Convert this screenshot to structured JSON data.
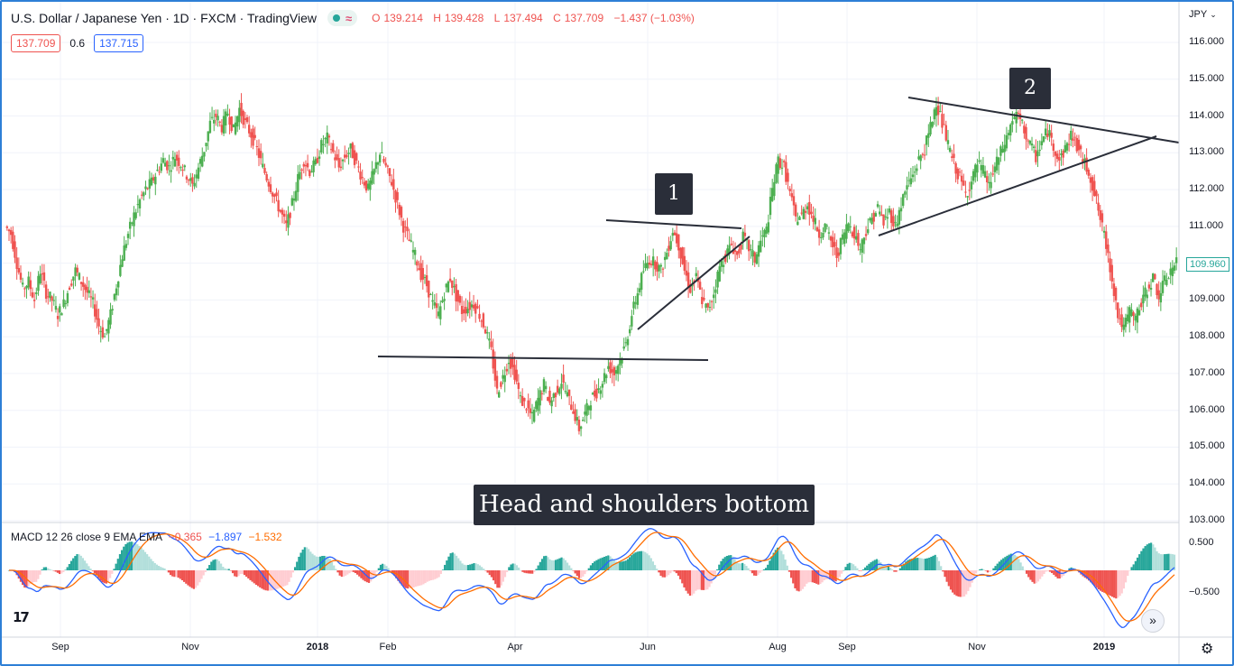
{
  "header": {
    "title": "U.S. Dollar / Japanese Yen · 1D · FXCM · TradingView",
    "ohlc": {
      "o_label": "O",
      "o": "139.214",
      "h_label": "H",
      "h": "139.428",
      "l_label": "L",
      "l": "137.494",
      "c_label": "C",
      "c": "137.709",
      "change": "−1.437 (−1.03%)"
    },
    "bid": "137.709",
    "spread": "0.6",
    "ask": "137.715"
  },
  "axis": {
    "currency": "JPY",
    "price_ticks": [
      "116.000",
      "115.000",
      "114.000",
      "113.000",
      "112.000",
      "111.000",
      "110.000",
      "109.000",
      "108.000",
      "107.000",
      "106.000",
      "105.000",
      "104.000",
      "103.000"
    ],
    "last_price": "109.960",
    "macd_ticks": [
      "0.500",
      "−0.500"
    ],
    "time_ticks": [
      {
        "label": "Sep",
        "bold": false
      },
      {
        "label": "Nov",
        "bold": false
      },
      {
        "label": "2018",
        "bold": true
      },
      {
        "label": "Feb",
        "bold": false
      },
      {
        "label": "Apr",
        "bold": false
      },
      {
        "label": "Jun",
        "bold": false
      },
      {
        "label": "Aug",
        "bold": false
      },
      {
        "label": "Sep",
        "bold": false
      },
      {
        "label": "Nov",
        "bold": false
      },
      {
        "label": "2019",
        "bold": true
      }
    ]
  },
  "annotations": {
    "label1": "1",
    "label2": "2",
    "caption": "Head and shoulders bottom"
  },
  "macd_legend": {
    "name": "MACD 12 26 close 9 EMA EMA",
    "hist": "−0.365",
    "macd": "−1.897",
    "signal": "−1.532"
  },
  "colors": {
    "up": "#26a69a",
    "up_bar": "#4caf50",
    "down": "#ef5350",
    "macd": "#2962ff",
    "signal": "#ff6d00",
    "frame": "#2d7fd6"
  },
  "icons": {
    "logo": "tradingview-logo-icon",
    "scroll": "scroll-to-realtime-icon",
    "settings": "gear-icon"
  },
  "chart_data": {
    "type": "candlestick",
    "symbol": "USDJPY",
    "interval": "1D",
    "x_range": [
      "2017-08",
      "2019-02"
    ],
    "ylim": [
      103,
      116.5
    ],
    "close": [
      110.8,
      110.0,
      109.3,
      109.5,
      109.0,
      109.8,
      109.2,
      109.0,
      108.6,
      108.9,
      109.4,
      109.8,
      109.5,
      109.2,
      108.9,
      108.3,
      108.0,
      108.6,
      109.4,
      110.2,
      110.8,
      111.3,
      111.7,
      112.0,
      112.2,
      112.5,
      112.8,
      112.6,
      112.9,
      112.7,
      112.4,
      112.1,
      112.6,
      113.1,
      113.8,
      114.0,
      113.7,
      114.1,
      113.6,
      114.2,
      113.8,
      113.5,
      113.1,
      112.6,
      112.2,
      111.8,
      111.4,
      111.0,
      111.6,
      112.3,
      112.8,
      112.5,
      112.7,
      113.2,
      113.4,
      113.0,
      112.6,
      112.9,
      113.1,
      112.7,
      112.3,
      112.0,
      112.5,
      113.0,
      112.6,
      112.2,
      111.6,
      111.0,
      110.6,
      110.2,
      109.7,
      109.4,
      108.9,
      108.6,
      109.2,
      109.6,
      109.1,
      108.7,
      108.8,
      108.9,
      108.6,
      108.2,
      107.6,
      106.5,
      106.9,
      107.4,
      107.0,
      106.3,
      106.1,
      105.8,
      106.3,
      106.7,
      106.2,
      106.5,
      106.8,
      106.4,
      106.0,
      105.5,
      105.9,
      106.3,
      106.5,
      106.8,
      107.2,
      107.0,
      107.4,
      107.8,
      108.6,
      109.2,
      109.8,
      110.1,
      110.0,
      109.8,
      110.3,
      110.9,
      110.5,
      109.8,
      109.3,
      109.6,
      109.0,
      108.7,
      109.2,
      109.9,
      110.2,
      110.5,
      110.2,
      110.7,
      110.4,
      110.1,
      110.6,
      110.9,
      112.0,
      112.8,
      112.6,
      111.9,
      111.2,
      111.3,
      111.6,
      111.2,
      110.8,
      111.0,
      110.6,
      110.2,
      110.7,
      111.1,
      110.8,
      110.4,
      110.9,
      111.2,
      111.5,
      111.1,
      111.4,
      111.0,
      111.6,
      112.1,
      112.4,
      112.8,
      113.1,
      113.7,
      114.4,
      113.8,
      113.2,
      112.7,
      112.3,
      111.9,
      112.2,
      112.7,
      112.5,
      112.1,
      112.6,
      113.0,
      113.4,
      113.9,
      114.0,
      113.6,
      113.2,
      112.9,
      113.3,
      113.6,
      113.2,
      112.8,
      113.1,
      113.5,
      113.2,
      112.8,
      112.5,
      111.9,
      111.2,
      110.5,
      109.6,
      108.6,
      108.2,
      108.7,
      108.5,
      108.9,
      109.3,
      109.6,
      109.1,
      109.5,
      109.8,
      110.0
    ]
  }
}
